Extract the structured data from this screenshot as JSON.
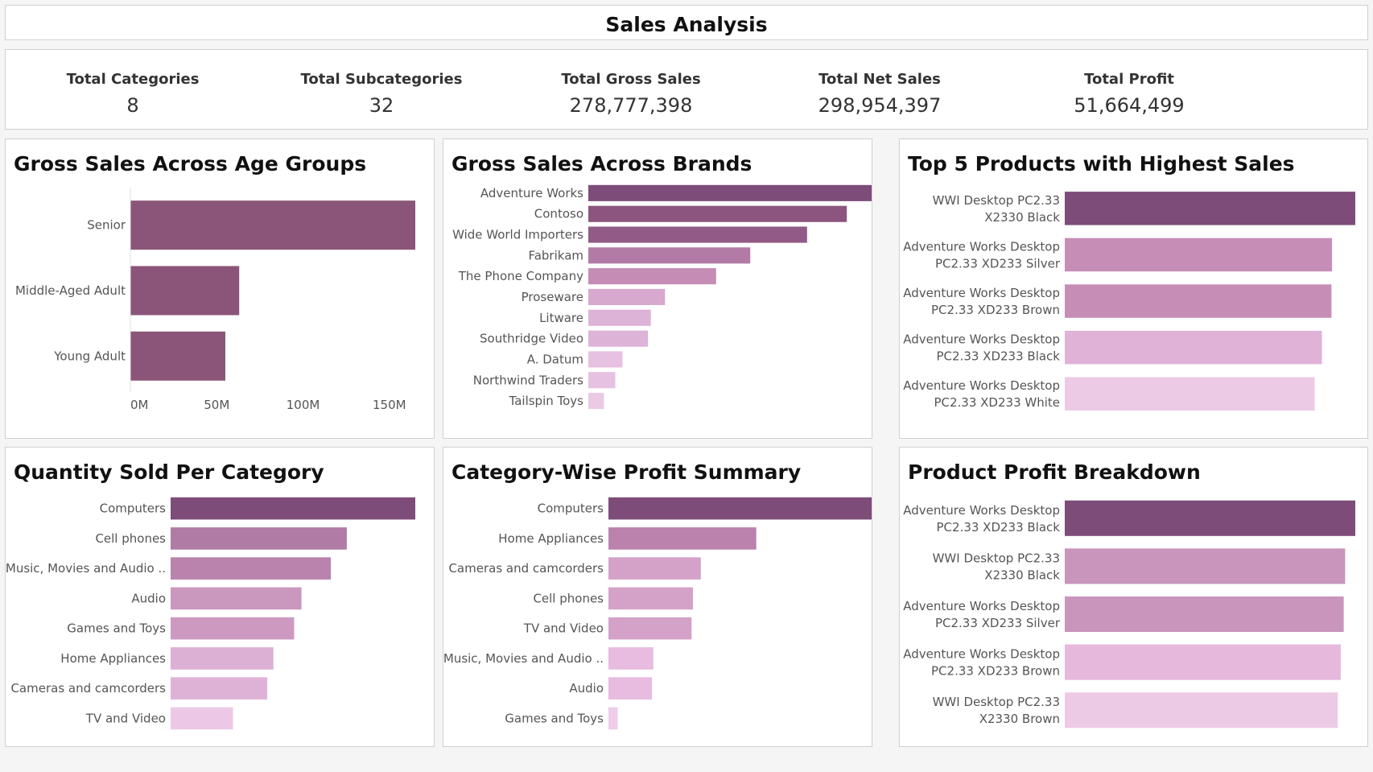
{
  "header": {
    "title": "Sales Analysis"
  },
  "kpis": [
    {
      "label": "Total Categories",
      "value": "8"
    },
    {
      "label": "Total Subcategories",
      "value": "32"
    },
    {
      "label": "Total Gross Sales",
      "value": "278,777,398"
    },
    {
      "label": "Total Net Sales",
      "value": "298,954,397"
    },
    {
      "label": "Total Profit",
      "value": "51,664,499"
    }
  ],
  "chart_data": [
    {
      "id": "age",
      "type": "bar",
      "orientation": "horizontal",
      "title": "Gross Sales Across Age Groups",
      "categories": [
        "Senior",
        "Middle-Aged Adult",
        "Young Adult"
      ],
      "values": [
        165000000,
        63000000,
        55000000
      ],
      "xlim": [
        0,
        165000000
      ],
      "ticks": [
        0,
        50000000,
        100000000,
        150000000
      ],
      "tick_labels": [
        "0M",
        "50M",
        "100M",
        "150M"
      ],
      "colors": [
        "#8b5579",
        "#8b5579",
        "#8b5579"
      ]
    },
    {
      "id": "brands",
      "type": "bar",
      "orientation": "horizontal",
      "title": "Gross Sales Across Brands",
      "categories": [
        "Adventure Works",
        "Contoso",
        "Wide World Importers",
        "Fabrikam",
        "The Phone Company",
        "Proseware",
        "Litware",
        "Southridge Video",
        "A. Datum",
        "Northwind Traders",
        "Tailspin Toys"
      ],
      "values": [
        100,
        91,
        77,
        57,
        45,
        27,
        22,
        21,
        12,
        9.5,
        5.5
      ],
      "colors": [
        "#7d4c79",
        "#8b5580",
        "#925a86",
        "#b27ba6",
        "#c58db5",
        "#d7a9cf",
        "#deb3d8",
        "#deb3d8",
        "#e7c1e1",
        "#e7c1e1",
        "#ebcae5"
      ]
    },
    {
      "id": "top5",
      "type": "bar",
      "orientation": "horizontal",
      "title": "Top 5 Products with Highest Sales",
      "categories": [
        [
          "WWI Desktop PC2.33",
          "X2330 Black"
        ],
        [
          "Adventure Works Desktop",
          "PC2.33 XD233 Silver"
        ],
        [
          "Adventure Works Desktop",
          "PC2.33 XD233 Brown"
        ],
        [
          "Adventure Works Desktop",
          "PC2.33 XD233 Black"
        ],
        [
          "Adventure Works Desktop",
          "PC2.33 XD233 White"
        ]
      ],
      "values": [
        100,
        92,
        91.8,
        88.5,
        86
      ],
      "colors": [
        "#7d4c79",
        "#c68eb7",
        "#c68eb7",
        "#e0b2d8",
        "#eccae6"
      ]
    },
    {
      "id": "qty",
      "type": "bar",
      "orientation": "horizontal",
      "title": "Quantity Sold Per Category",
      "categories": [
        "Computers",
        "Cell phones",
        "Music, Movies and Audio ..",
        "Audio",
        "Games and Toys",
        "Home Appliances",
        "Cameras and camcorders",
        "TV and Video"
      ],
      "values": [
        100,
        72,
        65.5,
        53.5,
        50.5,
        42,
        39.5,
        25.5
      ],
      "colors": [
        "#7d4c79",
        "#b07ba5",
        "#b983ad",
        "#ca97bf",
        "#cd99c1",
        "#dcafd4",
        "#deb2d6",
        "#ecc8e6"
      ]
    },
    {
      "id": "profit",
      "type": "bar",
      "orientation": "horizontal",
      "title": "Category-Wise Profit Summary",
      "categories": [
        "Computers",
        "Home Appliances",
        "Cameras and camcorders",
        "Cell phones",
        "TV and Video",
        "Music, Movies and Audio ..",
        "Audio",
        "Games and Toys"
      ],
      "values": [
        100,
        56,
        35,
        32,
        31.5,
        17,
        16.5,
        3.5
      ],
      "colors": [
        "#7d4c79",
        "#bb82ad",
        "#d4a2c8",
        "#d4a2c8",
        "#d4a2c8",
        "#e7bce0",
        "#e7bce0",
        "#efccea"
      ]
    },
    {
      "id": "pprofit",
      "type": "bar",
      "orientation": "horizontal",
      "title": "Product Profit Breakdown",
      "categories": [
        [
          "Adventure Works Desktop",
          "PC2.33 XD233 Black"
        ],
        [
          "WWI Desktop PC2.33",
          "X2330 Black"
        ],
        [
          "Adventure Works Desktop",
          "PC2.33 XD233 Silver"
        ],
        [
          "Adventure Works Desktop",
          "PC2.33 XD233 Brown"
        ],
        [
          "WWI Desktop PC2.33",
          "X2330 Brown"
        ]
      ],
      "values": [
        100,
        96.5,
        96,
        95,
        94
      ],
      "colors": [
        "#7d4c79",
        "#c995bc",
        "#c995bc",
        "#e6b8dc",
        "#eccae6"
      ]
    }
  ]
}
